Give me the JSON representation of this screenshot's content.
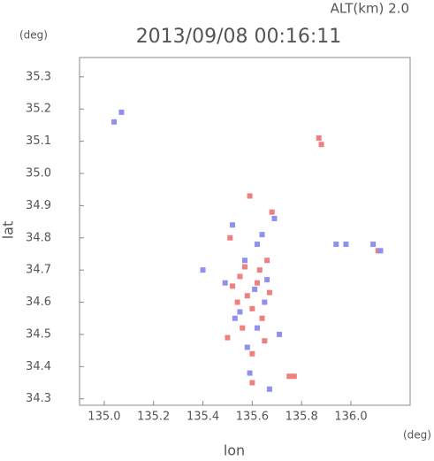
{
  "chart_data": {
    "type": "scatter",
    "title": "2013/09/08 00:16:11",
    "subtitle": "ALT(km) 2.0",
    "y_unit": "(deg)",
    "x_unit": "(deg)",
    "xlabel": "lon",
    "ylabel": "lat",
    "xlim": [
      134.9,
      136.24
    ],
    "ylim": [
      34.28,
      35.36
    ],
    "xticks": [
      {
        "value": 135,
        "label": "135.0"
      },
      135.2,
      135.4,
      135.6,
      135.8,
      {
        "value": 136,
        "label": "136.0"
      }
    ],
    "yticks": [
      34.3,
      34.4,
      34.5,
      34.6,
      34.7,
      34.8,
      34.9,
      {
        "value": 35,
        "label": "35.0"
      },
      35.1,
      35.2,
      35.3
    ],
    "series": [
      {
        "color": "#f08080",
        "x": [
          135.87,
          135.88,
          135.75,
          135.77,
          135.6,
          135.5,
          135.65,
          135.58,
          135.62,
          135.55,
          135.52,
          135.6,
          135.56,
          135.64,
          135.67,
          135.59,
          135.68,
          136.11,
          135.51,
          135.57,
          135.63,
          135.66,
          135.54,
          135.6
        ],
        "values": [
          35.11,
          35.09,
          34.37,
          34.37,
          34.35,
          34.49,
          34.48,
          34.62,
          34.66,
          34.68,
          34.65,
          34.58,
          34.52,
          34.55,
          34.63,
          34.93,
          34.88,
          34.76,
          34.8,
          34.71,
          34.7,
          34.73,
          34.6,
          34.44
        ]
      },
      {
        "color": "#9090f0",
        "x": [
          135.07,
          135.04,
          135.94,
          135.98,
          136.12,
          136.09,
          135.71,
          135.59,
          135.67,
          135.52,
          135.62,
          135.64,
          135.55,
          135.61,
          135.49,
          135.65,
          135.57,
          135.58,
          135.69,
          135.53,
          135.4,
          135.62,
          135.66
        ],
        "values": [
          35.19,
          35.16,
          34.78,
          34.78,
          34.76,
          34.78,
          34.5,
          34.38,
          34.33,
          34.84,
          34.78,
          34.81,
          34.57,
          34.64,
          34.66,
          34.6,
          34.73,
          34.46,
          34.86,
          34.55,
          34.7,
          34.52,
          34.67
        ]
      }
    ]
  }
}
